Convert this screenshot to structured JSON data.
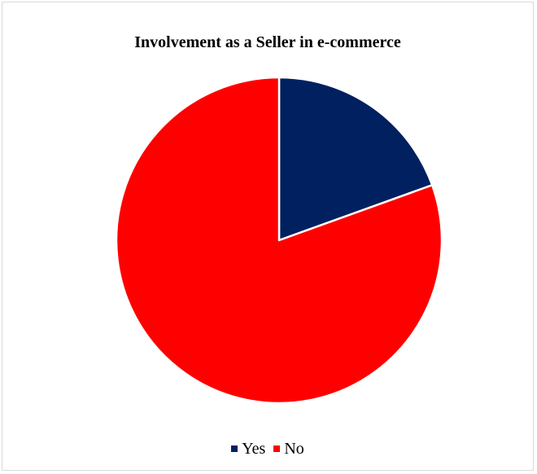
{
  "chart_data": {
    "type": "pie",
    "title": "Involvement as a Seller in e-commerce",
    "start_angle_deg": 0,
    "direction": "clockwise",
    "slices": [
      {
        "label": "Yes",
        "value": 19.5,
        "color": "#002060"
      },
      {
        "label": "No",
        "value": 80.5,
        "color": "#FF0000"
      }
    ],
    "legend_position": "bottom",
    "border_color": "#d9d9d9",
    "slice_separator_color": "#ffffff"
  }
}
